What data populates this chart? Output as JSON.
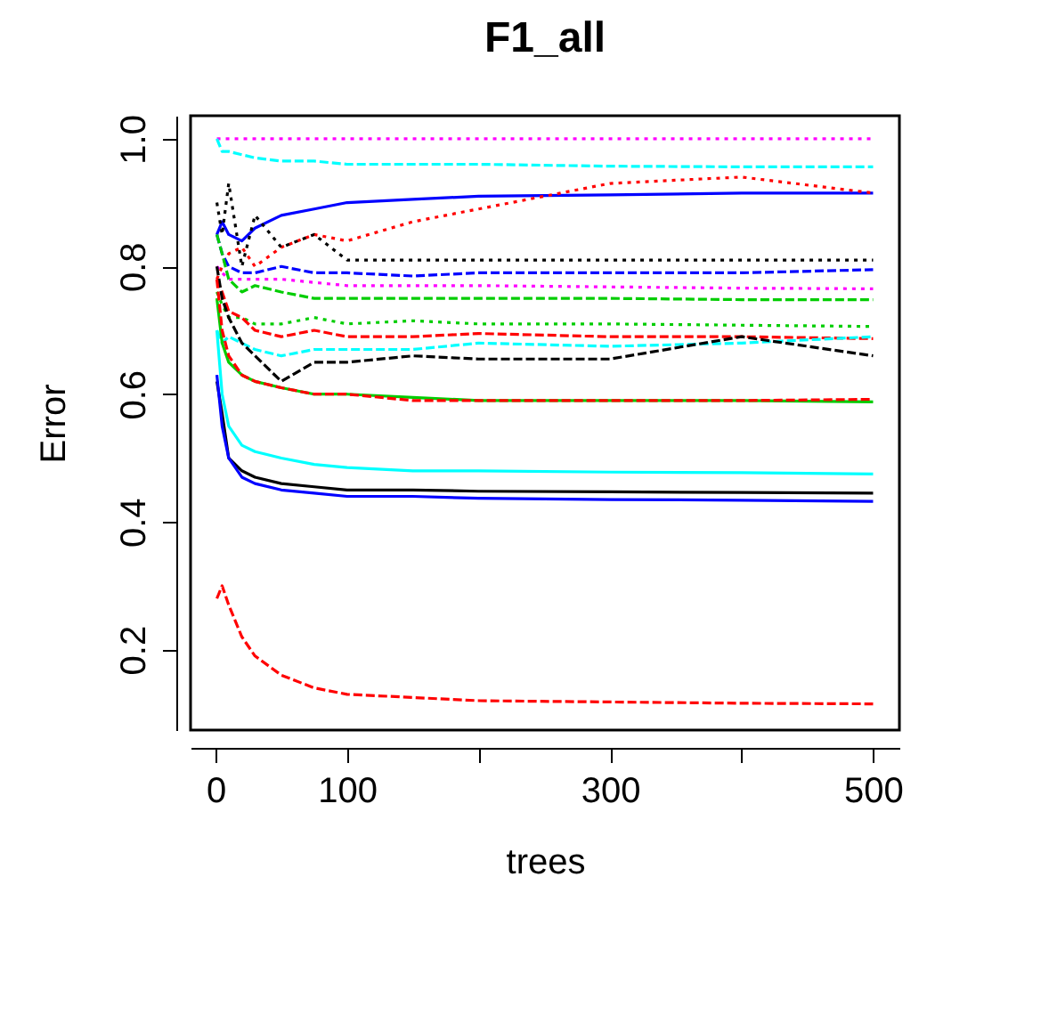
{
  "chart_data": {
    "type": "line",
    "title": "F1_all",
    "xlabel": "trees",
    "ylabel": "Error",
    "x": [
      1,
      5,
      10,
      20,
      30,
      50,
      75,
      100,
      150,
      200,
      300,
      400,
      500
    ],
    "xlim": [
      -19,
      520
    ],
    "ylim": [
      0.074,
      1.036
    ],
    "xticks": [
      0,
      100,
      {
        "value": 200,
        "label": null
      },
      300,
      {
        "value": 400,
        "label": null
      },
      500
    ],
    "yticks": [
      0.2,
      0.4,
      0.6,
      0.8,
      {
        "value": 1.0,
        "label": "1.0"
      }
    ],
    "grid": false,
    "legend": false,
    "series": [
      {
        "color": "#000000",
        "line_style": "solid",
        "values": [
          0.62,
          0.57,
          0.5,
          0.48,
          0.47,
          0.46,
          0.455,
          0.45,
          0.45,
          0.448,
          0.447,
          0.446,
          0.445
        ]
      },
      {
        "color": "#0000ff",
        "line_style": "solid",
        "values": [
          0.63,
          0.55,
          0.5,
          0.47,
          0.46,
          0.45,
          0.445,
          0.44,
          0.44,
          0.437,
          0.435,
          0.434,
          0.432
        ]
      },
      {
        "color": "#00ffff",
        "line_style": "solid",
        "values": [
          0.7,
          0.6,
          0.55,
          0.52,
          0.51,
          0.5,
          0.49,
          0.485,
          0.48,
          0.48,
          0.478,
          0.477,
          0.475
        ]
      },
      {
        "color": "#ff0000",
        "line_style": "dashed",
        "values": [
          0.28,
          0.3,
          0.27,
          0.22,
          0.19,
          0.16,
          0.14,
          0.13,
          0.125,
          0.12,
          0.118,
          0.116,
          0.115
        ]
      },
      {
        "color": "#ff00ff",
        "line_style": "dotted",
        "values": [
          1.0,
          1.0,
          1.0,
          1.0,
          1.0,
          1.0,
          1.0,
          1.0,
          1.0,
          1.0,
          1.0,
          1.0,
          1.0
        ]
      },
      {
        "color": "#00ffff",
        "line_style": "dashed",
        "values": [
          1.0,
          0.98,
          0.98,
          0.975,
          0.97,
          0.965,
          0.965,
          0.96,
          0.96,
          0.96,
          0.957,
          0.956,
          0.956
        ]
      },
      {
        "color": "#0000ff",
        "line_style": "solid",
        "values": [
          0.85,
          0.87,
          0.85,
          0.84,
          0.86,
          0.88,
          0.89,
          0.9,
          0.905,
          0.91,
          0.912,
          0.915,
          0.915
        ]
      },
      {
        "color": "#ff0000",
        "line_style": "dotted",
        "values": [
          0.78,
          0.8,
          0.82,
          0.83,
          0.8,
          0.83,
          0.85,
          0.84,
          0.87,
          0.89,
          0.93,
          0.94,
          0.915
        ]
      },
      {
        "color": "#000000",
        "line_style": "dotted",
        "values": [
          0.9,
          0.85,
          0.93,
          0.8,
          0.88,
          0.83,
          0.85,
          0.81,
          0.81,
          0.81,
          0.81,
          0.81,
          0.81
        ]
      },
      {
        "color": "#0000ff",
        "line_style": "dashed",
        "values": [
          0.85,
          0.82,
          0.8,
          0.79,
          0.79,
          0.8,
          0.79,
          0.79,
          0.785,
          0.79,
          0.79,
          0.79,
          0.795
        ]
      },
      {
        "color": "#ff00ff",
        "line_style": "dotted",
        "values": [
          0.8,
          0.79,
          0.78,
          0.78,
          0.78,
          0.78,
          0.775,
          0.77,
          0.77,
          0.77,
          0.768,
          0.766,
          0.765
        ]
      },
      {
        "color": "#00cd00",
        "line_style": "dashed",
        "values": [
          0.85,
          0.82,
          0.78,
          0.76,
          0.77,
          0.76,
          0.75,
          0.75,
          0.75,
          0.75,
          0.75,
          0.748,
          0.748
        ]
      },
      {
        "color": "#00cd00",
        "line_style": "dotted",
        "values": [
          0.76,
          0.74,
          0.72,
          0.72,
          0.71,
          0.71,
          0.72,
          0.71,
          0.715,
          0.71,
          0.71,
          0.708,
          0.706
        ]
      },
      {
        "color": "#ff0000",
        "line_style": "dashed",
        "values": [
          0.78,
          0.76,
          0.73,
          0.72,
          0.7,
          0.69,
          0.7,
          0.69,
          0.69,
          0.695,
          0.69,
          0.69,
          0.687
        ]
      },
      {
        "color": "#00ffff",
        "line_style": "dashed",
        "values": [
          0.7,
          0.68,
          0.69,
          0.68,
          0.67,
          0.66,
          0.67,
          0.67,
          0.67,
          0.68,
          0.675,
          0.68,
          0.69
        ]
      },
      {
        "color": "#000000",
        "line_style": "dashed",
        "values": [
          0.8,
          0.75,
          0.72,
          0.68,
          0.66,
          0.62,
          0.65,
          0.65,
          0.66,
          0.655,
          0.655,
          0.69,
          0.66
        ]
      },
      {
        "color": "#00cd00",
        "line_style": "solid",
        "values": [
          0.75,
          0.68,
          0.65,
          0.63,
          0.62,
          0.61,
          0.6,
          0.6,
          0.595,
          0.59,
          0.59,
          0.59,
          0.588
        ]
      },
      {
        "color": "#ff0000",
        "line_style": "dashed",
        "values": [
          0.78,
          0.7,
          0.66,
          0.63,
          0.62,
          0.61,
          0.6,
          0.6,
          0.59,
          0.59,
          0.59,
          0.59,
          0.592
        ]
      }
    ]
  }
}
